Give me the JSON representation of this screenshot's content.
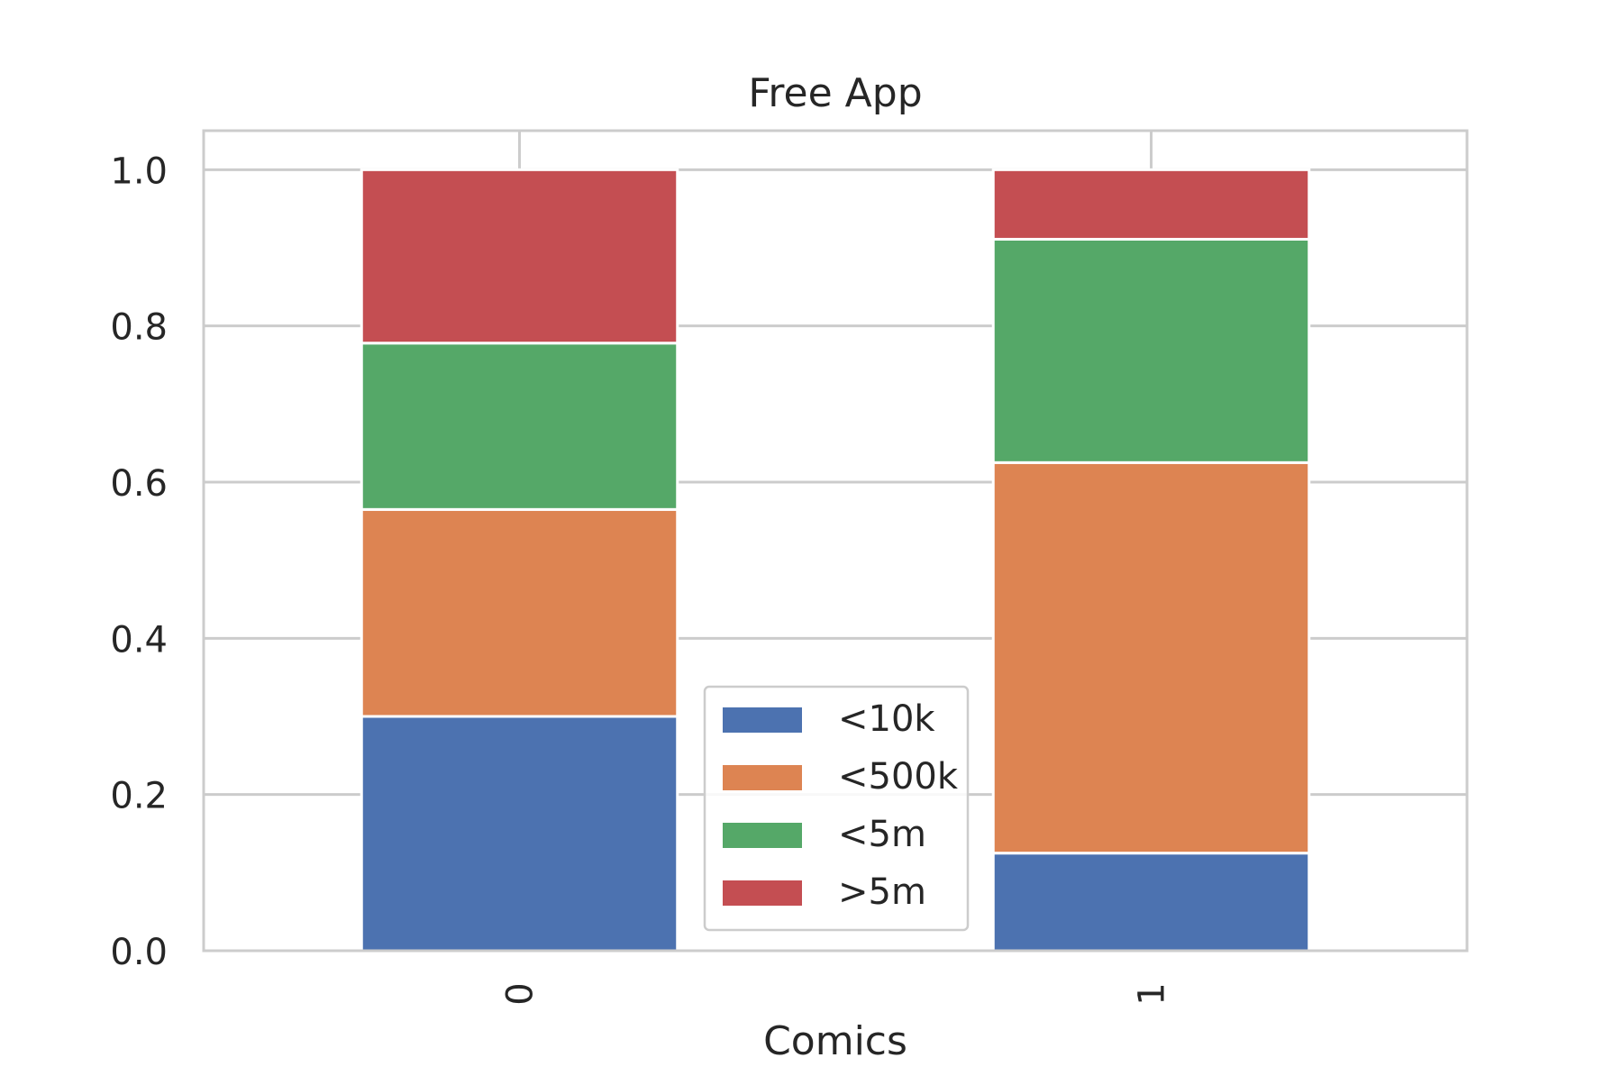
{
  "chart_data": {
    "type": "bar",
    "stacked": true,
    "title": "Free App",
    "xlabel": "Comics",
    "ylabel": "",
    "categories": [
      "0",
      "1"
    ],
    "ylim": [
      0,
      1.05
    ],
    "yticks": [
      0.0,
      0.2,
      0.4,
      0.6,
      0.8,
      1.0
    ],
    "ytick_labels": [
      "0.0",
      "0.2",
      "0.4",
      "0.6",
      "0.8",
      "1.0"
    ],
    "grid": true,
    "legend_position": "bottom-center",
    "series": [
      {
        "name": "<10k",
        "color": "#4c72b0",
        "values": [
          0.3,
          0.125
        ]
      },
      {
        "name": "<500k",
        "color": "#dd8452",
        "values": [
          0.265,
          0.5
        ]
      },
      {
        "name": "<5m",
        "color": "#55a868",
        "values": [
          0.213,
          0.286
        ]
      },
      {
        "name": ">5m",
        "color": "#c44e52",
        "values": [
          0.222,
          0.089
        ]
      }
    ]
  }
}
